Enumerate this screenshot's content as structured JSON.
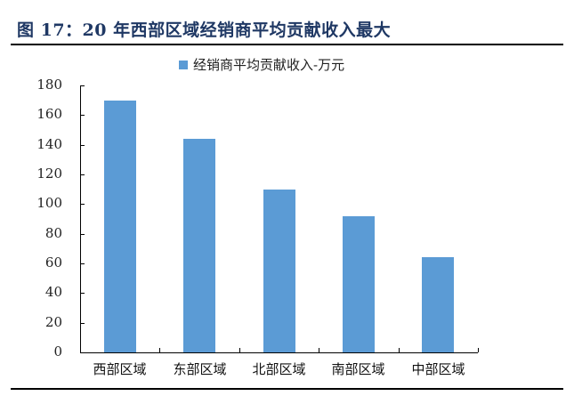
{
  "figure": {
    "title": "图 17：20 年西部区域经销商平均贡献收入最大"
  },
  "colors": {
    "bar": "#5b9bd5",
    "title": "#1f3864",
    "axis": "#000000"
  },
  "chart_data": {
    "type": "bar",
    "title": "图 17：20 年西部区域经销商平均贡献收入最大",
    "categories": [
      "西部区域",
      "东部区域",
      "北部区域",
      "南部区域",
      "中部区域"
    ],
    "series": [
      {
        "name": "经销商平均贡献收入-万元",
        "values": [
          170,
          144,
          110,
          92,
          64
        ]
      }
    ],
    "xlabel": "",
    "ylabel": "",
    "ylim": [
      0,
      180
    ],
    "yticks": [
      0,
      20,
      40,
      60,
      80,
      100,
      120,
      140,
      160,
      180
    ],
    "grid": false,
    "legend_position": "top"
  }
}
